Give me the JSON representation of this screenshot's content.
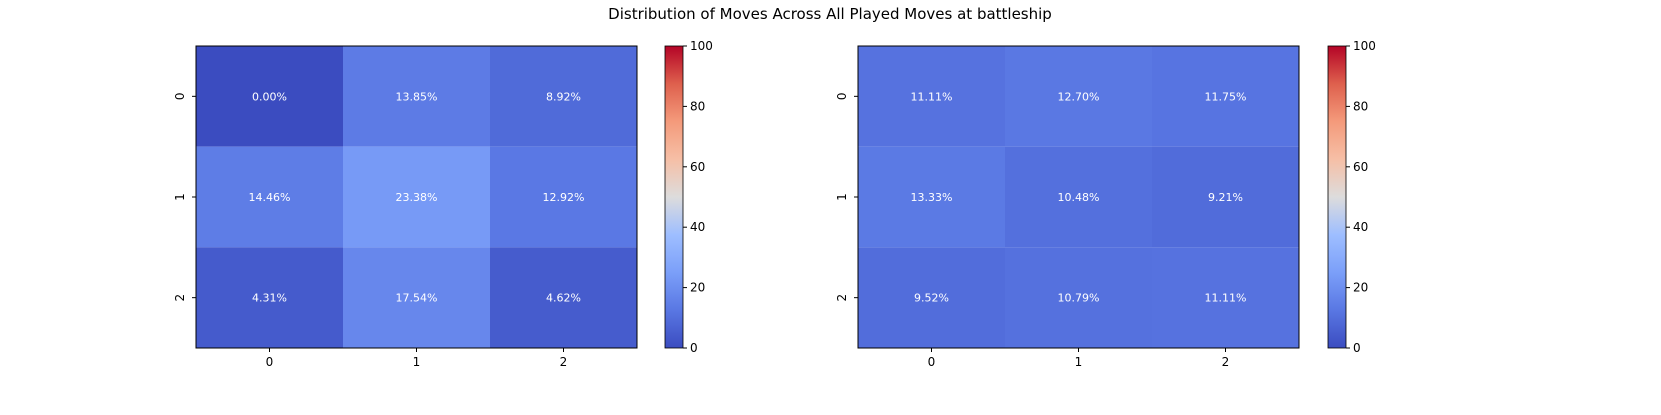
{
  "figure": {
    "title": "Distribution of Moves Across All Played Moves at battleship"
  },
  "chart_data": [
    {
      "type": "heatmap",
      "x_categories": [
        "0",
        "1",
        "2"
      ],
      "y_categories": [
        "0",
        "1",
        "2"
      ],
      "values": [
        [
          0.0,
          13.85,
          8.92
        ],
        [
          14.46,
          23.38,
          12.92
        ],
        [
          4.31,
          17.54,
          4.62
        ]
      ],
      "labels": [
        [
          "0.00%",
          "13.85%",
          "8.92%"
        ],
        [
          "14.46%",
          "23.38%",
          "12.92%"
        ],
        [
          "4.31%",
          "17.54%",
          "4.62%"
        ]
      ],
      "colorbar": {
        "min": 0,
        "max": 100,
        "ticks": [
          0,
          20,
          40,
          60,
          80,
          100
        ],
        "colormap": "coolwarm"
      }
    },
    {
      "type": "heatmap",
      "x_categories": [
        "0",
        "1",
        "2"
      ],
      "y_categories": [
        "0",
        "1",
        "2"
      ],
      "values": [
        [
          11.11,
          12.7,
          11.75
        ],
        [
          13.33,
          10.48,
          9.21
        ],
        [
          9.52,
          10.79,
          11.11
        ]
      ],
      "labels": [
        [
          "11.11%",
          "12.70%",
          "11.75%"
        ],
        [
          "13.33%",
          "10.48%",
          "9.21%"
        ],
        [
          "9.52%",
          "10.79%",
          "11.11%"
        ]
      ],
      "colorbar": {
        "min": 0,
        "max": 100,
        "ticks": [
          0,
          20,
          40,
          60,
          80,
          100
        ],
        "colormap": "coolwarm"
      }
    }
  ]
}
